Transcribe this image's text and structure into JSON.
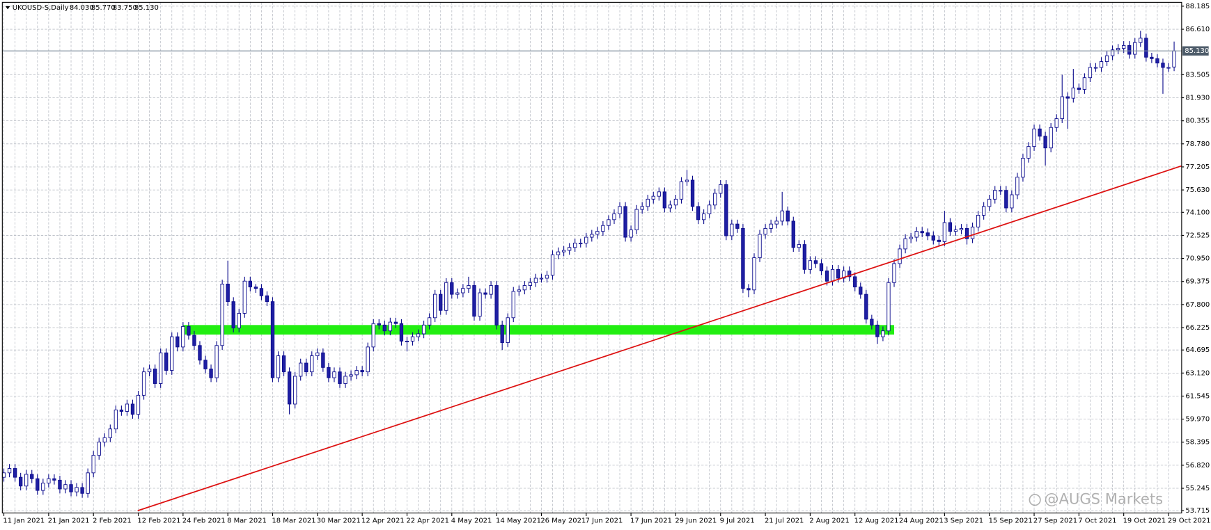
{
  "chart_data": {
    "type": "candlestick",
    "title": "UKOUSD-S,Daily",
    "ohlc_labels": [
      "84.030",
      "85.770",
      "83.750",
      "85.130"
    ],
    "watermark": "@AUGS Markets",
    "up_color": "#ffffff",
    "down_color": "#1f1fa3",
    "outline_color": "#0a0a8c",
    "grid": true,
    "categories": [
      "11 Jan 2021",
      null,
      null,
      null,
      null,
      null,
      null,
      null,
      "21 Jan 2021",
      null,
      null,
      null,
      null,
      null,
      null,
      null,
      "2 Feb 2021",
      null,
      null,
      null,
      null,
      null,
      null,
      null,
      "12 Feb 2021",
      null,
      null,
      null,
      null,
      null,
      null,
      null,
      "24 Feb 2021",
      null,
      null,
      null,
      null,
      null,
      null,
      null,
      "8 Mar 2021",
      null,
      null,
      null,
      null,
      null,
      null,
      null,
      "18 Mar 2021",
      null,
      null,
      null,
      null,
      null,
      null,
      null,
      "30 Mar 2021",
      null,
      null,
      null,
      null,
      null,
      null,
      null,
      "12 Apr 2021",
      null,
      null,
      null,
      null,
      null,
      null,
      null,
      "22 Apr 2021",
      null,
      null,
      null,
      null,
      null,
      null,
      null,
      "4 May 2021",
      null,
      null,
      null,
      null,
      null,
      null,
      null,
      "14 May 2021",
      null,
      null,
      null,
      null,
      null,
      null,
      null,
      "26 May 2021",
      null,
      null,
      null,
      null,
      null,
      null,
      null,
      "7 Jun 2021",
      null,
      null,
      null,
      null,
      null,
      null,
      null,
      "17 Jun 2021",
      null,
      null,
      null,
      null,
      null,
      null,
      null,
      "29 Jun 2021",
      null,
      null,
      null,
      null,
      null,
      null,
      null,
      "9 Jul 2021",
      null,
      null,
      null,
      null,
      null,
      null,
      null,
      "21 Jul 2021",
      null,
      null,
      null,
      null,
      null,
      null,
      null,
      "2 Aug 2021",
      null,
      null,
      null,
      null,
      null,
      null,
      null,
      "12 Aug 2021",
      null,
      null,
      null,
      null,
      null,
      null,
      null,
      "24 Aug 2021",
      null,
      null,
      null,
      null,
      null,
      null,
      null,
      "3 Sep 2021",
      null,
      null,
      null,
      null,
      null,
      null,
      null,
      "15 Sep 2021",
      null,
      null,
      null,
      null,
      null,
      null,
      null,
      "27 Sep 2021",
      null,
      null,
      null,
      null,
      null,
      null,
      null,
      "7 Oct 2021",
      null,
      null,
      null,
      null,
      null,
      null,
      null,
      "19 Oct 2021",
      null,
      null,
      null,
      null,
      null,
      null,
      null,
      "29 Oct 2021",
      null
    ],
    "open": [
      56.0,
      56.3,
      56.6,
      56.0,
      55.4,
      56.2,
      55.9,
      55.1,
      55.6,
      55.9,
      55.8,
      55.2,
      55.5,
      55.0,
      55.3,
      54.9,
      56.3,
      57.5,
      58.4,
      58.7,
      59.3,
      60.6,
      60.5,
      61.0,
      60.3,
      61.6,
      63.2,
      63.4,
      62.4,
      64.5,
      63.3,
      65.6,
      64.9,
      66.3,
      65.7,
      65.0,
      64.0,
      63.4,
      62.8,
      65.0,
      69.2,
      68.0,
      66.2,
      67.2,
      69.4,
      69.0,
      68.9,
      68.4,
      68.0,
      62.8,
      64.3,
      63.2,
      61.0,
      62.9,
      63.8,
      63.2,
      64.3,
      64.5,
      63.5,
      62.8,
      63.2,
      62.4,
      62.9,
      63.0,
      63.3,
      63.2,
      64.9,
      66.5,
      66.4,
      66.0,
      66.6,
      66.5,
      65.3,
      65.3,
      65.6,
      65.8,
      66.4,
      66.9,
      68.5,
      67.4,
      69.3,
      68.5,
      68.6,
      68.9,
      69.1,
      67.0,
      68.6,
      68.5,
      69.1,
      66.4,
      65.2,
      66.9,
      68.7,
      68.8,
      69.1,
      69.3,
      69.6,
      69.6,
      69.8,
      71.2,
      71.4,
      71.5,
      71.7,
      72.0,
      72.0,
      72.4,
      72.6,
      72.8,
      73.2,
      73.6,
      74.0,
      74.5,
      72.4,
      72.9,
      74.3,
      74.5,
      75.0,
      75.2,
      75.5,
      74.4,
      74.6,
      75.0,
      76.2,
      76.3,
      74.5,
      73.6,
      74.0,
      74.6,
      75.4,
      76.0,
      72.5,
      73.3,
      73.0,
      68.9,
      68.8,
      71.0,
      72.6,
      73.0,
      73.3,
      73.5,
      74.2,
      73.5,
      71.7,
      71.9,
      70.2,
      70.8,
      70.6,
      70.1,
      69.4,
      70.2,
      69.6,
      70.1,
      69.7,
      69.0,
      68.5,
      66.8,
      66.4,
      65.6,
      66.0,
      69.3,
      70.6,
      71.6,
      72.3,
      72.4,
      72.8,
      72.7,
      72.5,
      72.2,
      72.1,
      73.4,
      72.8,
      72.9,
      73.0,
      72.3,
      73.1,
      73.9,
      74.5,
      75.0,
      75.6,
      75.6,
      74.4,
      75.3,
      76.5,
      77.8,
      78.6,
      79.8,
      79.3,
      78.5,
      79.9,
      80.5,
      82.0,
      81.9,
      82.6,
      82.5,
      83.3,
      84.0,
      84.0,
      84.4,
      84.8,
      85.2,
      85.3,
      85.5,
      84.9,
      85.7,
      86.0,
      84.7,
      84.6,
      84.3,
      84.0,
      84.03
    ],
    "high": [
      56.6,
      56.9,
      56.9,
      56.3,
      56.5,
      56.5,
      56.2,
      55.9,
      56.2,
      56.2,
      56.1,
      55.8,
      55.8,
      55.6,
      55.6,
      56.6,
      57.8,
      58.7,
      59.0,
      59.6,
      60.9,
      60.9,
      61.3,
      61.3,
      61.9,
      63.5,
      63.7,
      63.7,
      64.8,
      64.8,
      65.9,
      65.9,
      66.6,
      66.6,
      66.0,
      65.3,
      64.3,
      63.7,
      65.3,
      69.5,
      70.8,
      68.3,
      67.5,
      69.7,
      69.7,
      69.2,
      69.2,
      68.7,
      68.3,
      64.6,
      64.6,
      63.5,
      63.2,
      64.1,
      64.1,
      64.6,
      64.8,
      64.8,
      63.8,
      63.5,
      63.5,
      63.2,
      63.3,
      63.6,
      63.6,
      65.2,
      66.8,
      66.8,
      66.7,
      66.9,
      66.9,
      66.8,
      65.6,
      65.9,
      66.1,
      66.7,
      67.2,
      68.8,
      68.8,
      69.6,
      69.6,
      68.9,
      69.2,
      69.7,
      69.4,
      68.9,
      68.9,
      69.4,
      69.4,
      66.7,
      67.2,
      69.0,
      69.1,
      69.4,
      69.6,
      69.9,
      69.9,
      70.1,
      71.5,
      71.7,
      71.8,
      72.0,
      72.3,
      72.3,
      72.7,
      72.9,
      73.1,
      73.5,
      73.9,
      74.3,
      74.8,
      74.8,
      73.2,
      74.6,
      74.8,
      75.3,
      75.5,
      75.8,
      75.8,
      74.9,
      75.3,
      76.5,
      77.0,
      76.6,
      74.8,
      74.3,
      74.9,
      75.7,
      76.3,
      76.3,
      73.6,
      73.6,
      73.3,
      69.2,
      71.3,
      72.9,
      73.3,
      73.6,
      73.8,
      75.5,
      74.5,
      73.8,
      72.2,
      72.2,
      71.1,
      71.1,
      70.9,
      70.4,
      70.5,
      70.5,
      70.4,
      70.4,
      70.0,
      69.3,
      68.8,
      67.1,
      66.7,
      66.3,
      69.6,
      70.9,
      71.9,
      72.6,
      72.7,
      73.1,
      73.1,
      73.0,
      72.8,
      72.5,
      74.2,
      73.7,
      73.2,
      73.3,
      73.3,
      73.4,
      74.2,
      74.8,
      75.3,
      75.9,
      75.9,
      75.9,
      75.6,
      76.8,
      78.1,
      78.9,
      80.1,
      80.1,
      79.6,
      80.2,
      80.8,
      83.5,
      82.3,
      83.9,
      82.9,
      83.6,
      84.3,
      84.3,
      84.7,
      85.1,
      85.5,
      85.6,
      85.8,
      85.8,
      86.0,
      86.5,
      86.3,
      85.0,
      84.9,
      84.6,
      84.3,
      85.77
    ],
    "low": [
      55.7,
      56.0,
      55.7,
      55.1,
      55.1,
      55.6,
      54.8,
      54.8,
      55.3,
      55.5,
      54.9,
      54.9,
      54.7,
      54.7,
      54.6,
      54.6,
      56.0,
      57.2,
      58.1,
      58.4,
      59.0,
      60.2,
      60.2,
      60.0,
      60.0,
      61.3,
      62.9,
      62.1,
      62.1,
      63.0,
      63.0,
      64.6,
      64.6,
      65.4,
      64.7,
      63.7,
      63.1,
      62.5,
      62.5,
      64.7,
      67.7,
      65.9,
      65.9,
      66.9,
      68.7,
      68.6,
      68.1,
      67.7,
      62.5,
      62.5,
      62.9,
      60.3,
      60.7,
      62.6,
      62.9,
      62.9,
      64.0,
      63.2,
      62.5,
      62.5,
      62.1,
      62.1,
      62.6,
      62.7,
      62.9,
      62.9,
      64.6,
      66.1,
      65.7,
      65.7,
      66.2,
      65.0,
      64.6,
      65.0,
      65.3,
      65.5,
      66.1,
      66.6,
      67.1,
      67.1,
      68.2,
      68.2,
      68.3,
      68.6,
      66.7,
      66.7,
      68.2,
      68.2,
      66.1,
      64.7,
      64.9,
      66.6,
      68.4,
      68.5,
      68.8,
      69.0,
      69.3,
      69.3,
      69.5,
      70.9,
      71.1,
      71.2,
      71.4,
      71.7,
      71.7,
      72.1,
      72.3,
      72.5,
      72.9,
      73.3,
      73.7,
      72.1,
      72.1,
      72.6,
      74.0,
      74.2,
      74.7,
      74.9,
      74.1,
      74.1,
      74.3,
      74.7,
      75.9,
      74.2,
      73.3,
      73.3,
      73.7,
      74.3,
      75.1,
      72.2,
      72.2,
      72.7,
      68.6,
      68.3,
      68.5,
      70.7,
      72.3,
      72.7,
      73.0,
      73.2,
      73.2,
      71.4,
      71.4,
      69.9,
      69.9,
      70.3,
      69.8,
      69.1,
      69.1,
      69.3,
      69.3,
      69.4,
      68.7,
      68.2,
      66.5,
      66.1,
      65.1,
      65.3,
      65.7,
      69.0,
      70.3,
      71.3,
      72.0,
      72.1,
      72.4,
      72.2,
      71.9,
      71.8,
      71.8,
      72.5,
      72.5,
      72.6,
      71.9,
      72.0,
      72.8,
      73.6,
      74.2,
      74.7,
      75.3,
      74.1,
      74.1,
      75.0,
      76.2,
      77.5,
      78.3,
      79.0,
      77.3,
      78.2,
      79.6,
      80.2,
      79.8,
      81.6,
      82.2,
      82.2,
      83.0,
      83.7,
      83.7,
      84.1,
      84.5,
      84.9,
      85.0,
      84.6,
      84.6,
      85.4,
      84.4,
      84.3,
      84.0,
      82.2,
      83.7,
      83.75
    ],
    "close": [
      56.3,
      56.6,
      56.0,
      55.4,
      56.2,
      55.9,
      55.1,
      55.6,
      55.9,
      55.8,
      55.2,
      55.5,
      55.0,
      55.3,
      54.9,
      56.3,
      57.5,
      58.4,
      58.7,
      59.3,
      60.6,
      60.5,
      61.0,
      60.3,
      61.6,
      63.2,
      63.4,
      62.4,
      64.5,
      63.3,
      65.6,
      64.9,
      66.3,
      65.7,
      65.0,
      64.0,
      63.4,
      62.8,
      65.0,
      69.2,
      68.0,
      66.2,
      67.2,
      69.4,
      69.0,
      68.9,
      68.4,
      68.0,
      62.8,
      64.3,
      63.2,
      61.0,
      62.9,
      63.8,
      63.2,
      64.3,
      64.5,
      63.5,
      62.8,
      63.2,
      62.4,
      62.9,
      63.0,
      63.3,
      63.2,
      64.9,
      66.5,
      66.4,
      66.0,
      66.6,
      66.5,
      65.3,
      65.3,
      65.6,
      65.8,
      66.4,
      66.9,
      68.5,
      67.4,
      69.3,
      68.5,
      68.6,
      68.9,
      69.1,
      67.0,
      68.6,
      68.5,
      69.1,
      66.4,
      65.2,
      66.9,
      68.7,
      68.8,
      69.1,
      69.3,
      69.6,
      69.6,
      69.8,
      71.2,
      71.4,
      71.5,
      71.7,
      72.0,
      72.0,
      72.4,
      72.6,
      72.8,
      73.2,
      73.6,
      74.0,
      74.5,
      72.4,
      72.9,
      74.3,
      74.5,
      75.0,
      75.2,
      75.5,
      74.4,
      74.6,
      75.0,
      76.2,
      76.3,
      74.5,
      73.6,
      74.0,
      74.6,
      75.4,
      76.0,
      72.5,
      73.3,
      73.0,
      68.9,
      68.8,
      71.0,
      72.6,
      73.0,
      73.3,
      73.5,
      74.2,
      73.5,
      71.7,
      71.9,
      70.2,
      70.8,
      70.6,
      70.1,
      69.4,
      70.2,
      69.6,
      70.1,
      69.7,
      69.0,
      68.5,
      66.8,
      66.4,
      65.6,
      66.0,
      69.3,
      70.6,
      71.6,
      72.3,
      72.4,
      72.8,
      72.7,
      72.5,
      72.2,
      72.1,
      73.4,
      72.8,
      72.9,
      73.0,
      72.3,
      73.1,
      73.9,
      74.5,
      75.0,
      75.6,
      75.6,
      74.4,
      75.3,
      76.5,
      77.8,
      78.6,
      79.8,
      79.3,
      78.5,
      79.9,
      80.5,
      82.0,
      81.9,
      82.6,
      82.5,
      83.3,
      84.0,
      84.0,
      84.4,
      84.8,
      85.2,
      85.3,
      85.5,
      84.9,
      85.7,
      86.0,
      84.7,
      84.6,
      84.3,
      84.0,
      84.0,
      85.13
    ],
    "ylim": [
      53.715,
      88.185
    ],
    "yticks": [
      88.185,
      {
        "value": 86.61,
        "label": "86.610"
      },
      83.505,
      {
        "value": 81.93,
        "label": "81.930"
      },
      80.355,
      {
        "value": 78.78,
        "label": "78.780"
      },
      77.205,
      {
        "value": 75.63,
        "label": "75.630"
      },
      {
        "value": 74.1,
        "label": "74.100"
      },
      72.525,
      {
        "value": 70.95,
        "label": "70.950"
      },
      69.375,
      {
        "value": 67.8,
        "label": "67.800"
      },
      66.225,
      64.695,
      {
        "value": 63.12,
        "label": "63.120"
      },
      61.545,
      {
        "value": 59.97,
        "label": "59.970"
      },
      58.395,
      {
        "value": 56.82,
        "label": "56.820"
      },
      55.245,
      53.715
    ],
    "last_price": {
      "value": 85.13,
      "label": "85.130"
    },
    "support_zone": {
      "x": [
        32,
        159
      ],
      "y": [
        65.75,
        66.4
      ],
      "color": "#22ee11"
    },
    "trendline": {
      "x": [
        23.9,
        210.3
      ],
      "y": [
        53.715,
        77.27
      ],
      "color": "#dd1111"
    }
  }
}
